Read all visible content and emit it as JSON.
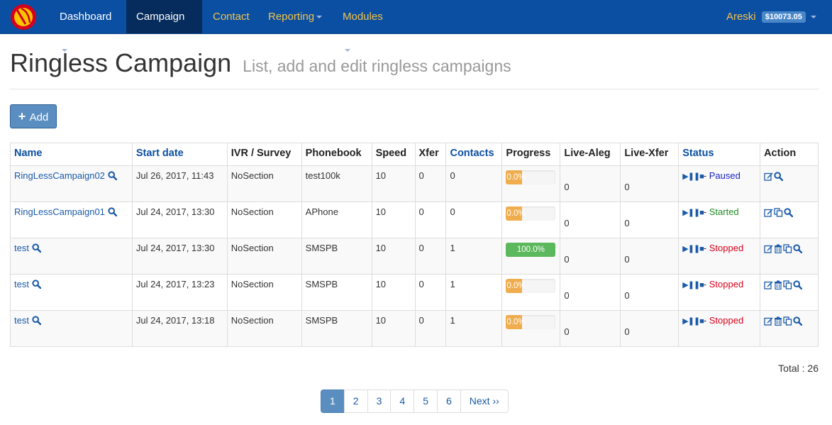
{
  "navbar": {
    "items": [
      {
        "label": "Dashboard",
        "active": false,
        "color": "white",
        "caret": true
      },
      {
        "label": "Campaign",
        "active": true,
        "color": "white",
        "caret": false
      },
      {
        "label": "Contact",
        "active": false,
        "color": "yellow",
        "caret": false
      },
      {
        "label": "Reporting",
        "active": false,
        "color": "yellow",
        "caret": true
      },
      {
        "label": "Modules",
        "active": false,
        "color": "yellow",
        "caret": true
      }
    ],
    "user": "Areski",
    "balance": "$10073.05"
  },
  "header": {
    "title": "Ringless Campaign",
    "subtitle": "List, add and edit ringless campaigns"
  },
  "add_button": {
    "label": "Add"
  },
  "table": {
    "columns": [
      "Name",
      "Start date",
      "IVR / Survey",
      "Phonebook",
      "Speed",
      "Xfer",
      "Contacts",
      "Progress",
      "Live-Aleg",
      "Live-Xfer",
      "Status",
      "Action"
    ],
    "rows": [
      {
        "name": "RingLessCampaign02",
        "start": "Jul 26, 2017, 11:43",
        "ivr": "NoSection",
        "phonebook": "test100k",
        "speed": "10",
        "xfer": "0",
        "contacts": "0",
        "progress": "0.0%",
        "progress_value": 0,
        "live_aleg": "0",
        "live_xfer": "0",
        "status": "Paused",
        "status_prefix": "- ",
        "actions": [
          "edit-icon",
          "search-icon"
        ]
      },
      {
        "name": "RingLessCampaign01",
        "start": "Jul 24, 2017, 13:30",
        "ivr": "NoSection",
        "phonebook": "APhone",
        "speed": "10",
        "xfer": "0",
        "contacts": "0",
        "progress": "0.0%",
        "progress_value": 0,
        "live_aleg": "0",
        "live_xfer": "0",
        "status": "Started",
        "status_prefix": "- ",
        "actions": [
          "edit-icon",
          "copy-icon",
          "search-icon"
        ]
      },
      {
        "name": "test",
        "start": "Jul 24, 2017, 13:30",
        "ivr": "NoSection",
        "phonebook": "SMSPB",
        "speed": "10",
        "xfer": "0",
        "contacts": "1",
        "progress": "100.0%",
        "progress_value": 100,
        "live_aleg": "0",
        "live_xfer": "0",
        "status": "Stopped",
        "status_prefix": "- ",
        "actions": [
          "edit-icon",
          "trash-icon",
          "copy-icon",
          "search-icon"
        ]
      },
      {
        "name": "test",
        "start": "Jul 24, 2017, 13:23",
        "ivr": "NoSection",
        "phonebook": "SMSPB",
        "speed": "10",
        "xfer": "0",
        "contacts": "1",
        "progress": "0.0%",
        "progress_value": 0,
        "live_aleg": "0",
        "live_xfer": "0",
        "status": "Stopped",
        "status_prefix": "- ",
        "actions": [
          "edit-icon",
          "trash-icon",
          "copy-icon",
          "search-icon"
        ]
      },
      {
        "name": "test",
        "start": "Jul 24, 2017, 13:18",
        "ivr": "NoSection",
        "phonebook": "SMSPB",
        "speed": "10",
        "xfer": "0",
        "contacts": "1",
        "progress": "0.0%",
        "progress_value": 0,
        "live_aleg": "0",
        "live_xfer": "0",
        "status": "Stopped",
        "status_prefix": "- ",
        "actions": [
          "edit-icon",
          "trash-icon",
          "copy-icon",
          "search-icon"
        ]
      }
    ]
  },
  "footer": {
    "total": "Total : 26",
    "pages": [
      "1",
      "2",
      "3",
      "4",
      "5",
      "6"
    ],
    "active_page": "1",
    "next_label": "Next ››"
  },
  "colors": {
    "navbar_bg": "#0b4fa2",
    "navbar_active": "#052c5c",
    "nav_yellow": "#f2c34a",
    "link": "#1a5aa8",
    "progress_orange": "#f0ad4e",
    "progress_green": "#5cb85c",
    "paused": "#1a24c9",
    "started": "#1f8a1f",
    "stopped": "#d9001b"
  }
}
